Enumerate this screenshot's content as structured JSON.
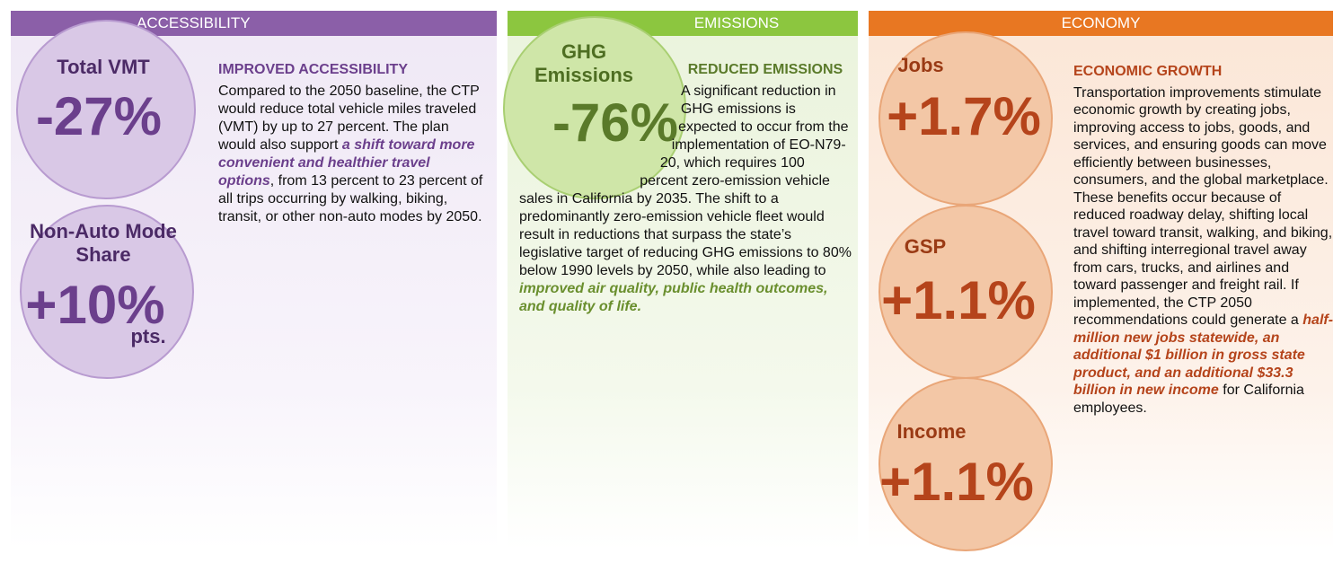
{
  "panels": [
    {
      "header": "ACCESSIBILITY",
      "stats": [
        {
          "label": "Total VMT",
          "value": "-27%"
        },
        {
          "label": "Non-Auto Mode Share",
          "value": "+10%",
          "unit": "pts."
        }
      ],
      "heading": "IMPROVED ACCESSIBILITY",
      "body": {
        "before": "Compared to the 2050 baseline, the CTP would reduce total vehicle miles traveled (VMT) by up to 27 percent. The plan would also support ",
        "emphasis": "a shift toward more convenient and healthier travel options",
        "after": ", from 13 percent to 23 percent of all trips occurring by walking, biking, transit, or other non-auto modes by 2050."
      }
    },
    {
      "header": "EMISSIONS",
      "stats": [
        {
          "label": "GHG Emissions",
          "value": "-76%"
        }
      ],
      "heading": "REDUCED EMISSIONS",
      "body": {
        "before": "A significant reduction in GHG emissions is expected to occur from the implementation of EO-N79-20, which requires 100 percent zero-emission vehicle sales in California by 2035. The shift to a predominantly zero-emission vehicle fleet would result in reductions that surpass the state’s legislative target of reducing GHG emissions to 80% below 1990 levels by 2050, while also leading to ",
        "emphasis": "improved air quality, public health outcomes, and quality of life."
      }
    },
    {
      "header": "ECONOMY",
      "stats": [
        {
          "label": "Jobs",
          "value": "+1.7%"
        },
        {
          "label": "GSP",
          "value": "+1.1%"
        },
        {
          "label": "Income",
          "value": "+1.1%"
        }
      ],
      "heading": "ECONOMIC GROWTH",
      "body": {
        "before": "Transportation improvements stimulate economic growth by creating jobs, improving access to jobs, goods, and services, and ensuring goods can move efficiently between businesses, consumers, and the global marketplace. These benefits occur because of reduced roadway delay, shifting local travel toward transit, walking, and biking, and shifting interregional travel away from cars, trucks, and airlines and toward passenger and freight rail. If implemented, the CTP 2050 recommendations could generate a ",
        "emphasis": "half-million new jobs statewide, an additional $1 billion in gross state product, and an additional $33.3 billion in new income",
        "after": " for California employees."
      }
    }
  ]
}
